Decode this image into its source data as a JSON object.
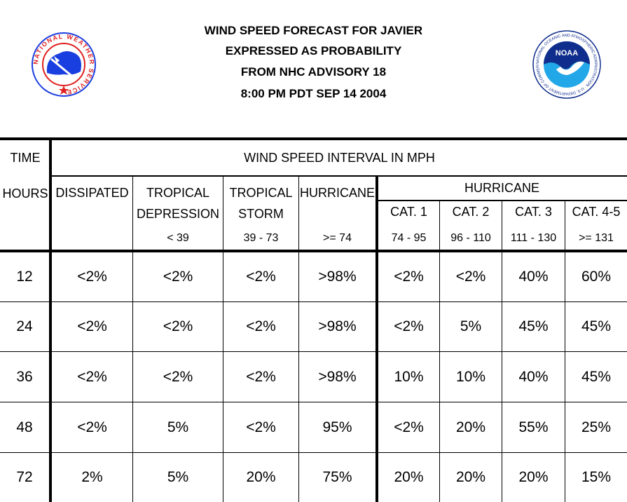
{
  "header": {
    "line1": "WIND SPEED FORECAST FOR JAVIER",
    "line2": "EXPRESSED AS PROBABILITY",
    "line3": "FROM NHC ADVISORY   18",
    "line4": "8:00 PM PDT SEP 14 2004"
  },
  "logos": {
    "nws_icon": "national-weather-service-seal",
    "noaa_icon": "noaa-logo",
    "nws_ring_text": "NATIONAL WEATHER SERVICE",
    "noaa_ring_text": "NATIONAL OCEANIC AND ATMOSPHERIC ADMINISTRATION · U.S. DEPARTMENT OF COMMERCE",
    "noaa_center_text": "NOAA",
    "colors": {
      "blue": "#1a3fe0",
      "red": "#e02020",
      "noaa_navy": "#0f2d8c",
      "noaa_sky": "#22a8e8"
    }
  },
  "table": {
    "time_label": "TIME",
    "interval_label": "WIND SPEED INTERVAL IN MPH",
    "hours_label": "HOURS",
    "hurricane_group_label": "HURRICANE",
    "columns": [
      {
        "line1": "DISSIPATED",
        "line2": "",
        "range": ""
      },
      {
        "line1": "TROPICAL",
        "line2": "DEPRESSION",
        "range": "< 39"
      },
      {
        "line1": "TROPICAL",
        "line2": "STORM",
        "range": "39 - 73"
      },
      {
        "line1": "HURRICANE",
        "line2": "",
        "range": ">= 74"
      },
      {
        "line1": "CAT. 1",
        "line2": "",
        "range": "74 - 95"
      },
      {
        "line1": "CAT. 2",
        "line2": "",
        "range": "96 - 110"
      },
      {
        "line1": "CAT. 3",
        "line2": "",
        "range": "111 - 130"
      },
      {
        "line1": "CAT. 4-5",
        "line2": "",
        "range": ">= 131"
      }
    ],
    "rows": [
      {
        "hour": "12",
        "values": [
          "<2%",
          "<2%",
          "<2%",
          ">98%",
          "<2%",
          "<2%",
          "40%",
          "60%"
        ]
      },
      {
        "hour": "24",
        "values": [
          "<2%",
          "<2%",
          "<2%",
          ">98%",
          "<2%",
          "5%",
          "45%",
          "45%"
        ]
      },
      {
        "hour": "36",
        "values": [
          "<2%",
          "<2%",
          "<2%",
          ">98%",
          "10%",
          "10%",
          "40%",
          "45%"
        ]
      },
      {
        "hour": "48",
        "values": [
          "<2%",
          "5%",
          "<2%",
          "95%",
          "<2%",
          "20%",
          "55%",
          "25%"
        ]
      },
      {
        "hour": "72",
        "values": [
          "2%",
          "5%",
          "20%",
          "75%",
          "20%",
          "20%",
          "20%",
          "15%"
        ]
      }
    ]
  }
}
